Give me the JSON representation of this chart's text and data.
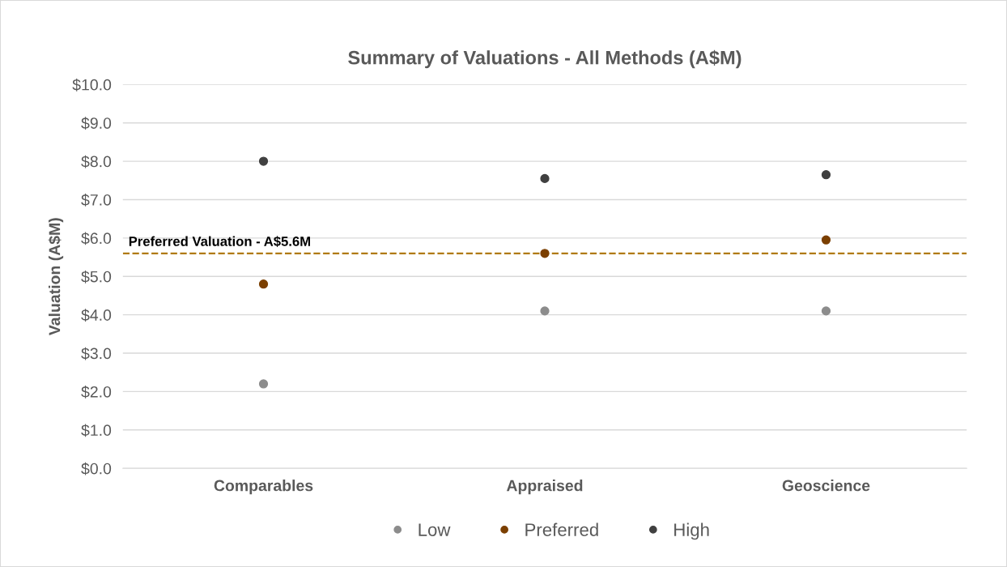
{
  "chart_data": {
    "type": "scatter",
    "title": "Summary of Valuations - All Methods (A$M)",
    "ylabel": "Valuation (A$M)",
    "categories": [
      "Comparables",
      "Appraised",
      "Geoscience"
    ],
    "series": [
      {
        "name": "Low",
        "color": "#8c8c8c",
        "values": [
          2.2,
          4.1,
          4.1
        ]
      },
      {
        "name": "Preferred",
        "color": "#7b3f00",
        "values": [
          4.8,
          5.6,
          5.95
        ]
      },
      {
        "name": "High",
        "color": "#404040",
        "values": [
          8.0,
          7.55,
          7.65
        ]
      }
    ],
    "ylim": [
      0,
      10
    ],
    "yticks": [
      {
        "value": 0,
        "label": "$0.0"
      },
      {
        "value": 1,
        "label": "$1.0"
      },
      {
        "value": 2,
        "label": "$2.0"
      },
      {
        "value": 3,
        "label": "$3.0"
      },
      {
        "value": 4,
        "label": "$4.0"
      },
      {
        "value": 5,
        "label": "$5.0"
      },
      {
        "value": 6,
        "label": "$6.0"
      },
      {
        "value": 7,
        "label": "$7.0"
      },
      {
        "value": 8,
        "label": "$8.0"
      },
      {
        "value": 9,
        "label": "$9.0"
      },
      {
        "value": 10,
        "label": "$10.0"
      }
    ],
    "ref_lines": [
      {
        "axis": "y",
        "value": 5.6,
        "label": "Preferred Valuation - A$5.6M",
        "color": "#b07a10",
        "line_style": "dashed"
      }
    ],
    "grid": "y",
    "legend": "bottom",
    "marker": "circle"
  }
}
